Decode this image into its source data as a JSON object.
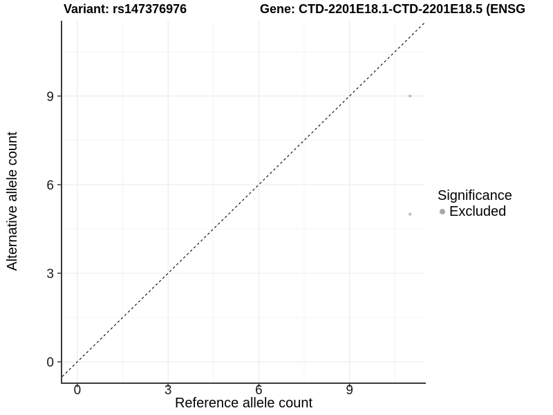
{
  "header": {
    "variant_title": "Variant: rs147376976",
    "gene_title": "Gene: CTD-2201E18.1-CTD-2201E18.5 (ENSG"
  },
  "chart_data": {
    "type": "scatter",
    "xlabel": "Reference allele count",
    "ylabel": "Alternative allele count",
    "x_ticks": [
      0,
      3,
      6,
      9
    ],
    "y_ticks": [
      0,
      3,
      6,
      9
    ],
    "x_minor_ticks": [
      1.5,
      4.5,
      7.5,
      10.5
    ],
    "y_minor_ticks": [
      1.5,
      4.5,
      7.5,
      10.5
    ],
    "xlim": [
      -0.5,
      11.5
    ],
    "ylim": [
      -0.7,
      11.55
    ],
    "grid": true,
    "legend_position": "right",
    "reference_line": {
      "kind": "identity y=x",
      "style": "dashed",
      "color": "#000000"
    },
    "series": [
      {
        "name": "Excluded",
        "point_color": "#c4c4c4",
        "point_radius": 2.3,
        "points": [
          {
            "x": 11,
            "y": 9
          },
          {
            "x": 11,
            "y": 5
          }
        ]
      }
    ]
  },
  "legend": {
    "title": "Significance",
    "items": [
      {
        "label": "Excluded",
        "color": "#a6a6a6"
      }
    ]
  },
  "colors": {
    "background": "#ffffff",
    "grid_major": "#e8e8e8",
    "grid_minor": "#f4f4f4",
    "axis_line": "#3a3a3a",
    "tick_label": "#1a1a1a"
  }
}
